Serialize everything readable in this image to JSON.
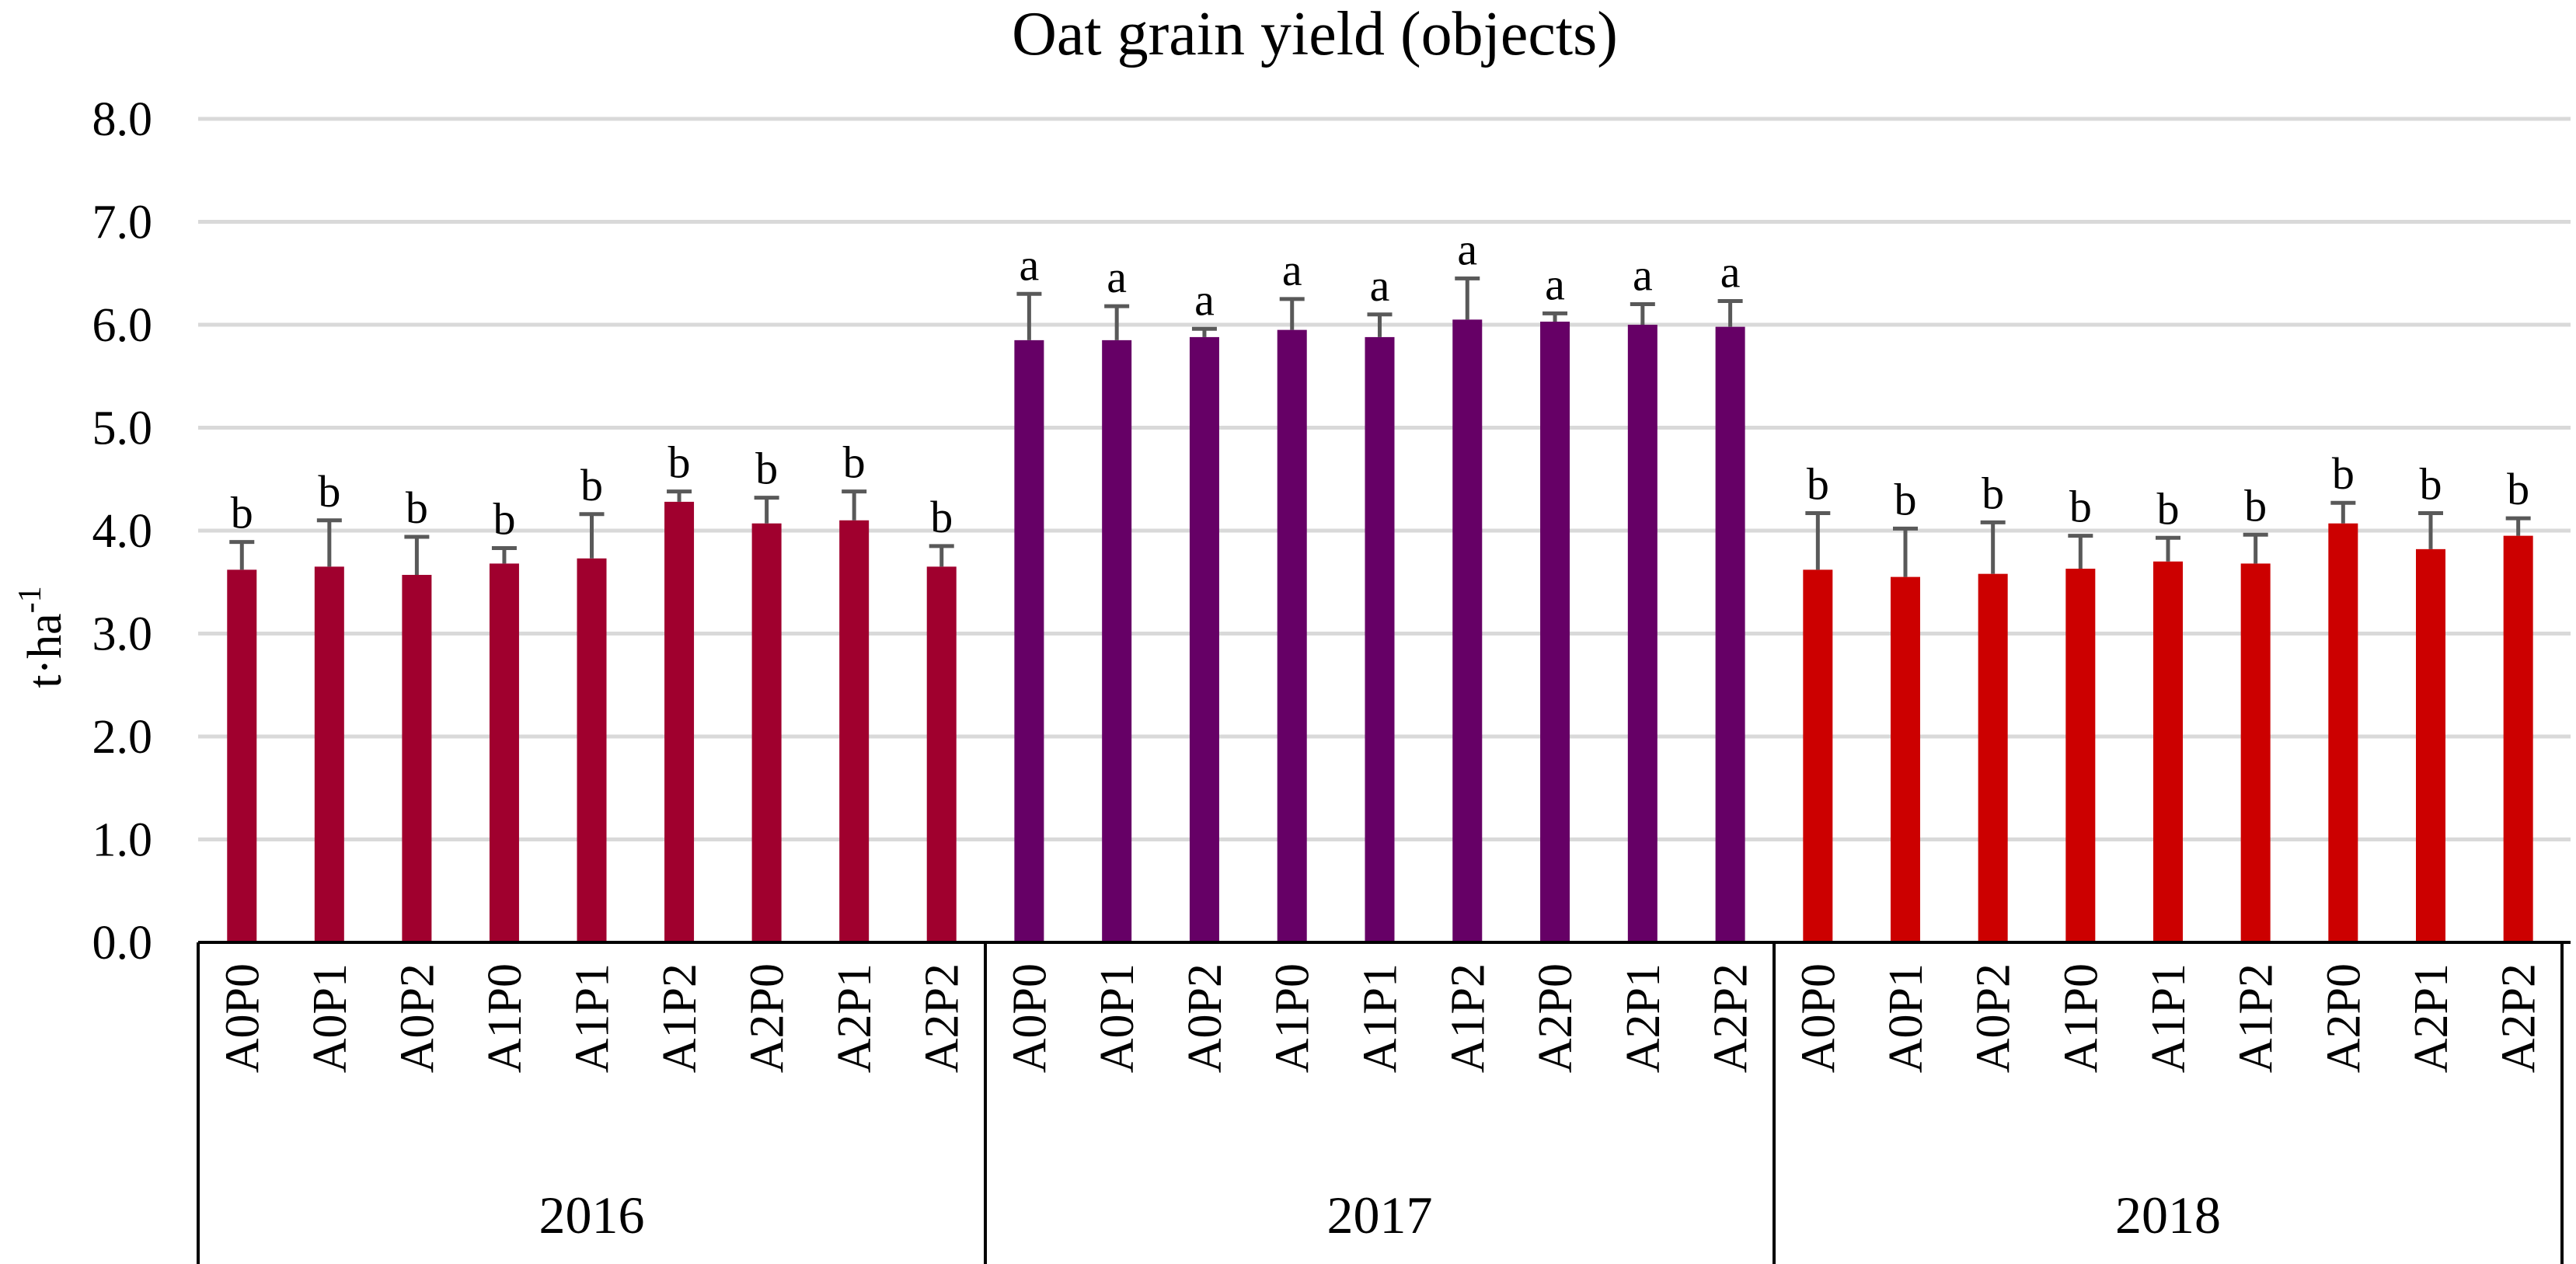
{
  "chart_data": {
    "type": "bar",
    "title": "Oat grain yield (objects)",
    "xlabel": "",
    "ylabel": "t·ha-1",
    "ylabel_main": "t·ha",
    "ylabel_sup": "-1",
    "ylim": [
      0,
      8
    ],
    "yticks": [
      "0.0",
      "1.0",
      "2.0",
      "3.0",
      "4.0",
      "5.0",
      "6.0",
      "7.0",
      "8.0"
    ],
    "grid": true,
    "groups": [
      {
        "year": "2016",
        "color": "#a0002e",
        "categories": [
          "A0P0",
          "A0P1",
          "A0P2",
          "A1P0",
          "A1P1",
          "A1P2",
          "A2P0",
          "A2P1",
          "A2P2"
        ],
        "values": [
          3.62,
          3.65,
          3.57,
          3.68,
          3.73,
          4.28,
          4.07,
          4.1,
          3.65
        ],
        "errors": [
          0.27,
          0.45,
          0.37,
          0.15,
          0.43,
          0.1,
          0.25,
          0.28,
          0.2
        ],
        "labels": [
          "b",
          "b",
          "b",
          "b",
          "b",
          "b",
          "b",
          "b",
          "b"
        ]
      },
      {
        "year": "2017",
        "color": "#660066",
        "categories": [
          "A0P0",
          "A0P1",
          "A0P2",
          "A1P0",
          "A1P1",
          "A1P2",
          "A2P0",
          "A2P1",
          "A2P2"
        ],
        "values": [
          5.85,
          5.85,
          5.88,
          5.95,
          5.88,
          6.05,
          6.03,
          6.0,
          5.98
        ],
        "errors": [
          0.45,
          0.33,
          0.08,
          0.3,
          0.22,
          0.4,
          0.08,
          0.2,
          0.25
        ],
        "labels": [
          "a",
          "a",
          "a",
          "a",
          "a",
          "a",
          "a",
          "a",
          "a"
        ]
      },
      {
        "year": "2018",
        "color": "#cc0000",
        "categories": [
          "A0P0",
          "A0P1",
          "A0P2",
          "A1P0",
          "A1P1",
          "A1P2",
          "A2P0",
          "A2P1",
          "A2P2"
        ],
        "values": [
          3.62,
          3.55,
          3.58,
          3.63,
          3.7,
          3.68,
          4.07,
          3.82,
          3.95
        ],
        "errors": [
          0.55,
          0.47,
          0.5,
          0.32,
          0.23,
          0.28,
          0.2,
          0.35,
          0.17
        ],
        "labels": [
          "b",
          "b",
          "b",
          "b",
          "b",
          "b",
          "b",
          "b",
          "b"
        ]
      }
    ]
  }
}
